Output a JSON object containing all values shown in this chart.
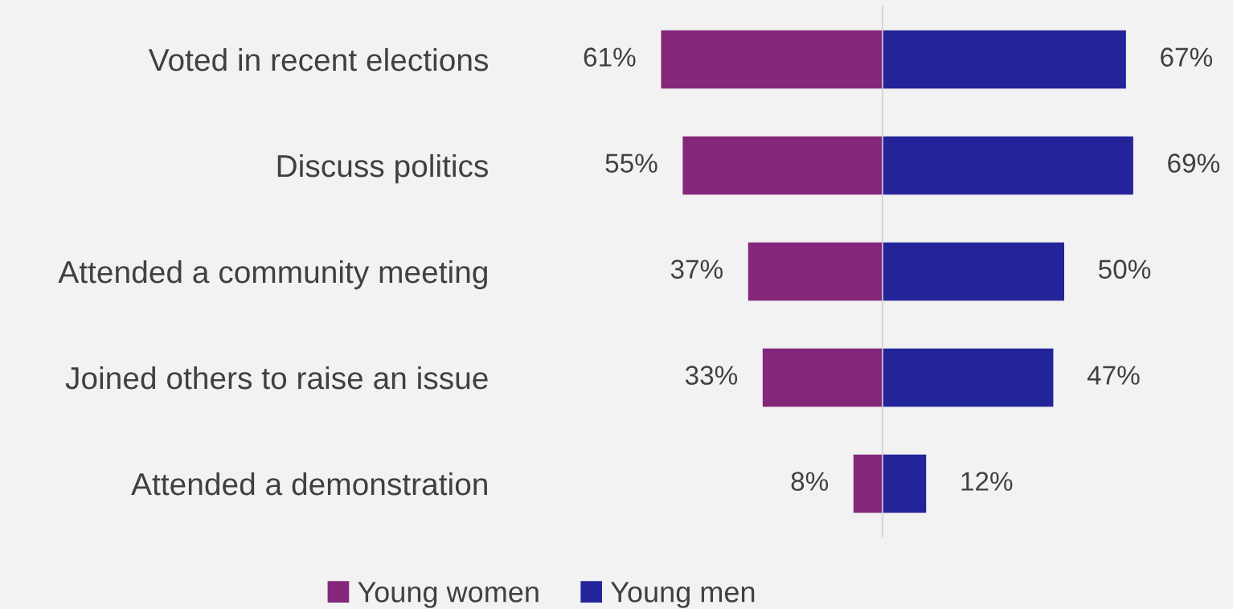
{
  "chart_data": [
    {
      "type": "bar",
      "orientation": "horizontal",
      "categories": [
        "Voted in recent elections",
        "Discuss politics",
        "Attended a community meeting",
        "Joined others to raise an issue",
        "Attended a demonstration"
      ],
      "series": [
        {
          "name": "Young women",
          "color": "#84267a",
          "values": [
            61,
            55,
            37,
            33,
            8
          ],
          "value_labels": [
            "61%",
            "55%",
            "37%",
            "33%",
            "8%"
          ]
        }
      ],
      "xlim": [
        61,
        0
      ],
      "tick_labels": "y",
      "grid": false,
      "legend": "bottom"
    },
    {
      "type": "bar",
      "orientation": "horizontal",
      "categories": [
        null,
        null,
        null,
        null,
        null
      ],
      "series": [
        {
          "name": "Young men",
          "color": "#24249a",
          "values": [
            67,
            69,
            50,
            47,
            12
          ],
          "value_labels": [
            "67%",
            "69%",
            "50%",
            "47%",
            "12%"
          ]
        }
      ],
      "xlim": [
        0,
        69
      ],
      "tick_labels": false,
      "grid": false,
      "legend": "bottom"
    }
  ]
}
